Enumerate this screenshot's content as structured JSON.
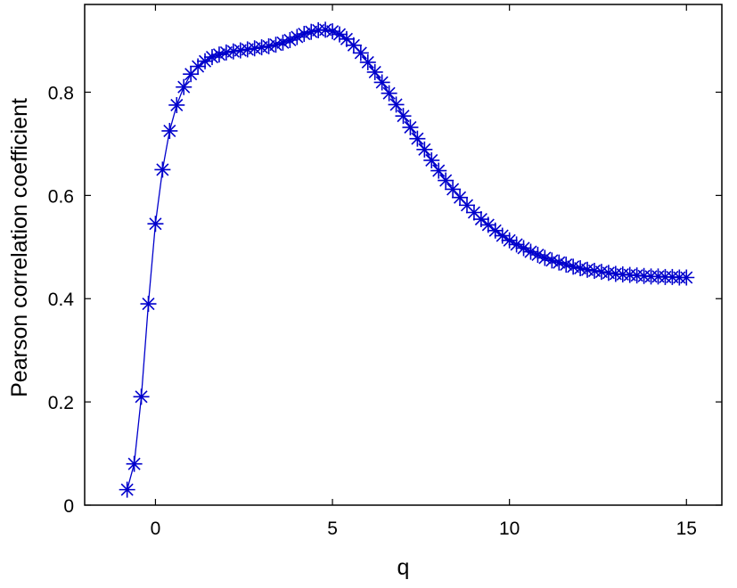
{
  "chart_data": {
    "type": "line",
    "title": "",
    "xlabel": "q",
    "ylabel": "Pearson correlation coefficient",
    "xlim": [
      -2,
      16
    ],
    "ylim": [
      0,
      0.97
    ],
    "xticks": [
      0,
      5,
      10,
      15
    ],
    "yticks": [
      0,
      0.2,
      0.4,
      0.6,
      0.8
    ],
    "xtick_labels": [
      "0",
      "5",
      "10",
      "15"
    ],
    "ytick_labels": [
      "0",
      "0.2",
      "0.4",
      "0.6",
      "0.8"
    ],
    "grid": false,
    "legend": "none",
    "marker": "asterisk",
    "series": [
      {
        "color": "#0000cc",
        "x": [
          -0.8,
          -0.6,
          -0.4,
          -0.2,
          0.0,
          0.2,
          0.4,
          0.6,
          0.8,
          1.0,
          1.2,
          1.4,
          1.6,
          1.8,
          2.0,
          2.2,
          2.4,
          2.6,
          2.8,
          3.0,
          3.2,
          3.4,
          3.6,
          3.8,
          4.0,
          4.2,
          4.4,
          4.6,
          4.8,
          5.0,
          5.2,
          5.4,
          5.6,
          5.8,
          6.0,
          6.2,
          6.4,
          6.6,
          6.8,
          7.0,
          7.2,
          7.4,
          7.6,
          7.8,
          8.0,
          8.2,
          8.4,
          8.6,
          8.8,
          9.0,
          9.2,
          9.4,
          9.6,
          9.8,
          10.0,
          10.2,
          10.4,
          10.6,
          10.8,
          11.0,
          11.2,
          11.4,
          11.6,
          11.8,
          12.0,
          12.2,
          12.4,
          12.6,
          12.8,
          13.0,
          13.2,
          13.4,
          13.6,
          13.8,
          14.0,
          14.2,
          14.4,
          14.6,
          14.8,
          15.0
        ],
        "y": [
          0.03,
          0.08,
          0.21,
          0.39,
          0.545,
          0.65,
          0.725,
          0.775,
          0.81,
          0.835,
          0.85,
          0.86,
          0.868,
          0.873,
          0.877,
          0.879,
          0.881,
          0.883,
          0.885,
          0.887,
          0.889,
          0.892,
          0.896,
          0.901,
          0.907,
          0.913,
          0.917,
          0.92,
          0.921,
          0.918,
          0.912,
          0.903,
          0.891,
          0.876,
          0.858,
          0.839,
          0.819,
          0.798,
          0.776,
          0.754,
          0.732,
          0.71,
          0.689,
          0.668,
          0.648,
          0.629,
          0.612,
          0.596,
          0.581,
          0.567,
          0.554,
          0.543,
          0.532,
          0.522,
          0.513,
          0.505,
          0.498,
          0.491,
          0.485,
          0.479,
          0.474,
          0.47,
          0.466,
          0.462,
          0.459,
          0.456,
          0.454,
          0.452,
          0.45,
          0.448,
          0.447,
          0.446,
          0.445,
          0.444,
          0.443,
          0.443,
          0.442,
          0.442,
          0.441,
          0.441
        ]
      }
    ]
  }
}
